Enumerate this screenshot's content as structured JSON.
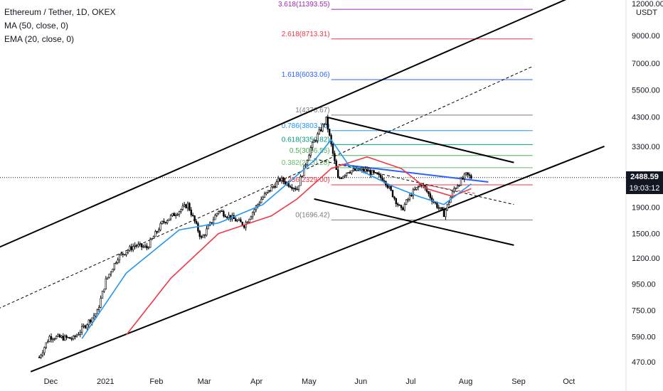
{
  "legend": {
    "title": "Ethereum / Tether, 1D, OKEX",
    "ma": "MA (50, close, 0)",
    "ema": "EMA (20, close, 0)"
  },
  "axis": {
    "currency": "USDT",
    "price_ticks": [
      {
        "label": "12000.00",
        "value": 12000
      },
      {
        "label": "9000.00",
        "value": 9000
      },
      {
        "label": "7000.00",
        "value": 7000
      },
      {
        "label": "5500.00",
        "value": 5500
      },
      {
        "label": "4300.00",
        "value": 4300
      },
      {
        "label": "3300.00",
        "value": 3300
      },
      {
        "label": "1900.00",
        "value": 1900
      },
      {
        "label": "1500.00",
        "value": 1500
      },
      {
        "label": "1200.00",
        "value": 1200
      },
      {
        "label": "950.00",
        "value": 950
      },
      {
        "label": "750.00",
        "value": 750
      },
      {
        "label": "590.00",
        "value": 590
      },
      {
        "label": "470.00",
        "value": 470
      }
    ],
    "time_ticks": [
      "Dec",
      "2021",
      "Feb",
      "Mar",
      "Apr",
      "May",
      "Jun",
      "Jul",
      "Aug",
      "Sep",
      "Oct"
    ]
  },
  "current": {
    "price": "2488.59",
    "countdown": "19:03:12"
  },
  "fib_levels": [
    {
      "label": "3.618(11393.55)",
      "value": 11393.55,
      "color": "#9c27b0"
    },
    {
      "label": "2.618(8713.31)",
      "value": 8713.31,
      "color": "#f23645"
    },
    {
      "label": "1.618(6033.06)",
      "value": 6033.06,
      "color": "#2962ff"
    },
    {
      "label": "1(4376.67)",
      "value": 4376.67,
      "color": "#787b86"
    },
    {
      "label": "0.786(3803.10)",
      "value": 3803.1,
      "color": "#2196f3"
    },
    {
      "label": "0.618(3352.82)",
      "value": 3352.82,
      "color": "#089981"
    },
    {
      "label": "0.5(3036.55)",
      "value": 3036.55,
      "color": "#4caf50"
    },
    {
      "label": "0.382(2720.28)",
      "value": 2720.28,
      "color": "#66bb6a"
    },
    {
      "label": "0.236(2329.00)",
      "value": 2329.0,
      "color": "#f23645"
    },
    {
      "label": "0(1696.42)",
      "value": 1696.42,
      "color": "#787b86"
    }
  ],
  "chart_data": {
    "type": "candlestick",
    "title": "Ethereum / Tether, 1D, OKEX",
    "scale": "log",
    "ylim": [
      440,
      12700
    ],
    "series": [
      {
        "name": "MA (50, close, 0)",
        "color": "#f23645"
      },
      {
        "name": "EMA (20, close, 0)",
        "color": "#2196f3"
      }
    ],
    "anchors": [
      {
        "date": "2020-11-25",
        "price": 490
      },
      {
        "date": "2020-12-01",
        "price": 590
      },
      {
        "date": "2020-12-15",
        "price": 580
      },
      {
        "date": "2020-12-29",
        "price": 740
      },
      {
        "date": "2021-01-03",
        "price": 980
      },
      {
        "date": "2021-01-10",
        "price": 1210
      },
      {
        "date": "2021-01-20",
        "price": 1350
      },
      {
        "date": "2021-01-27",
        "price": 1320
      },
      {
        "date": "2021-02-05",
        "price": 1650
      },
      {
        "date": "2021-02-20",
        "price": 1950
      },
      {
        "date": "2021-02-28",
        "price": 1430
      },
      {
        "date": "2021-03-10",
        "price": 1850
      },
      {
        "date": "2021-03-25",
        "price": 1620
      },
      {
        "date": "2021-04-04",
        "price": 2050
      },
      {
        "date": "2021-04-15",
        "price": 2450
      },
      {
        "date": "2021-04-25",
        "price": 2250
      },
      {
        "date": "2021-05-03",
        "price": 3250
      },
      {
        "date": "2021-05-12",
        "price": 4200
      },
      {
        "date": "2021-05-19",
        "price": 2450
      },
      {
        "date": "2021-05-25",
        "price": 2650
      },
      {
        "date": "2021-06-05",
        "price": 2650
      },
      {
        "date": "2021-06-15",
        "price": 2450
      },
      {
        "date": "2021-06-25",
        "price": 1850
      },
      {
        "date": "2021-07-01",
        "price": 2150
      },
      {
        "date": "2021-07-07",
        "price": 2350
      },
      {
        "date": "2021-07-14",
        "price": 2000
      },
      {
        "date": "2021-07-20",
        "price": 1790
      },
      {
        "date": "2021-07-26",
        "price": 2250
      },
      {
        "date": "2021-08-02",
        "price": 2550
      },
      {
        "date": "2021-08-05",
        "price": 2490
      }
    ],
    "ma_anchors": [
      {
        "date": "2021-01-15",
        "price": 600
      },
      {
        "date": "2021-02-10",
        "price": 1000
      },
      {
        "date": "2021-03-10",
        "price": 1500
      },
      {
        "date": "2021-04-10",
        "price": 1760
      },
      {
        "date": "2021-04-25",
        "price": 2050
      },
      {
        "date": "2021-05-15",
        "price": 2700
      },
      {
        "date": "2021-06-05",
        "price": 3000
      },
      {
        "date": "2021-06-25",
        "price": 2700
      },
      {
        "date": "2021-07-10",
        "price": 2250
      },
      {
        "date": "2021-07-25",
        "price": 2100
      },
      {
        "date": "2021-08-05",
        "price": 2250
      }
    ],
    "ema_anchors": [
      {
        "date": "2020-12-20",
        "price": 580
      },
      {
        "date": "2021-01-15",
        "price": 1050
      },
      {
        "date": "2021-02-15",
        "price": 1550
      },
      {
        "date": "2021-03-10",
        "price": 1650
      },
      {
        "date": "2021-04-05",
        "price": 1950
      },
      {
        "date": "2021-05-05",
        "price": 2900
      },
      {
        "date": "2021-05-15",
        "price": 3500
      },
      {
        "date": "2021-05-25",
        "price": 2800
      },
      {
        "date": "2021-06-20",
        "price": 2300
      },
      {
        "date": "2021-07-05",
        "price": 2100
      },
      {
        "date": "2021-07-20",
        "price": 1950
      },
      {
        "date": "2021-08-05",
        "price": 2350
      }
    ],
    "trendlines": [
      {
        "name": "channel-upper",
        "from": {
          "date": "2020-11-01",
          "price": 1320
        },
        "to": {
          "date": "2021-10-22",
          "price": 14500
        },
        "color": "#000000",
        "style": "solid"
      },
      {
        "name": "channel-lower",
        "from": {
          "date": "2020-11-20",
          "price": 430
        },
        "to": {
          "date": "2021-10-22",
          "price": 3300
        },
        "color": "#000000",
        "style": "solid"
      },
      {
        "name": "channel-mid",
        "from": {
          "date": "2020-11-01",
          "price": 760
        },
        "to": {
          "date": "2021-09-10",
          "price": 6800
        },
        "color": "#000000",
        "style": "dashed"
      },
      {
        "name": "wedge-top",
        "from": {
          "date": "2021-05-12",
          "price": 4300
        },
        "to": {
          "date": "2021-08-30",
          "price": 2850
        },
        "color": "#000000",
        "style": "solid"
      },
      {
        "name": "wedge-bottom",
        "from": {
          "date": "2021-05-05",
          "price": 2050
        },
        "to": {
          "date": "2021-08-30",
          "price": 1350
        },
        "color": "#000000",
        "style": "solid"
      },
      {
        "name": "wedge-mid",
        "from": {
          "date": "2021-05-05",
          "price": 2950
        },
        "to": {
          "date": "2021-08-30",
          "price": 1950
        },
        "color": "#000000",
        "style": "dashed"
      },
      {
        "name": "blue-trend",
        "from": {
          "date": "2021-05-21",
          "price": 2800
        },
        "to": {
          "date": "2021-08-15",
          "price": 2390
        },
        "color": "#2962ff",
        "style": "solid"
      },
      {
        "name": "red-flag",
        "from": {
          "date": "2021-07-05",
          "price": 2350
        },
        "to": {
          "date": "2021-08-08",
          "price": 2150
        },
        "color": "#f23645",
        "style": "dashed"
      }
    ]
  }
}
